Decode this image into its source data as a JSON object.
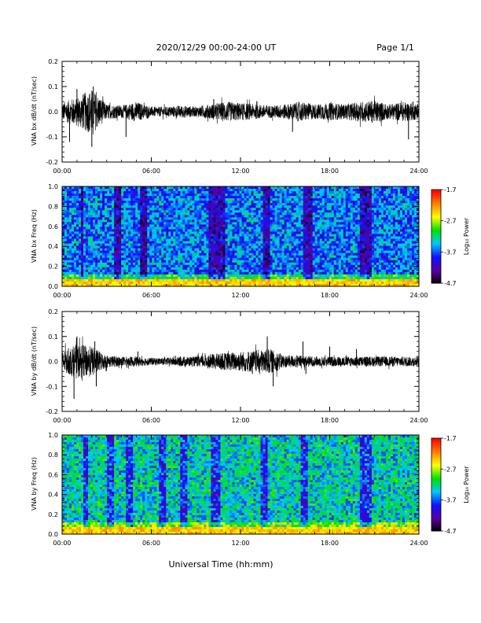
{
  "header": {
    "date_range": "2020/12/29  00:00-24:00 UT",
    "page": "Page 1/1"
  },
  "x_axis": {
    "label": "Universal Time (hh:mm)",
    "ticks": [
      "00:00",
      "06:00",
      "12:00",
      "18:00",
      "24:00"
    ],
    "range_hours": [
      0,
      24
    ]
  },
  "colorbar": {
    "label": "Log₁₀ Power",
    "ticks": [
      "-1.7",
      "-2.7",
      "-3.7",
      "-4.7"
    ],
    "range": [
      -4.7,
      -1.7
    ],
    "colors": [
      "#000000",
      "#5a00a0",
      "#1010ff",
      "#00c8ff",
      "#00e000",
      "#ffff00",
      "#ff8000",
      "#ff0000"
    ]
  },
  "chart_data": [
    {
      "type": "line",
      "ylabel": "VNA bx dB/dt (nT/sec)",
      "ylim": [
        -0.2,
        0.2
      ],
      "yticks": [
        "0.2",
        "0.1",
        "0.0",
        "-0.1",
        "-0.2"
      ],
      "color": "#000000",
      "series": [
        {
          "x_hours": [
            0,
            1,
            2,
            3,
            4,
            5,
            6,
            7,
            8,
            9,
            10,
            11,
            12,
            13,
            14,
            15,
            16,
            17,
            18,
            19,
            20,
            21,
            22,
            23,
            24
          ],
          "amplitude": [
            0.035,
            0.06,
            0.09,
            0.03,
            0.025,
            0.04,
            0.02,
            0.02,
            0.025,
            0.02,
            0.03,
            0.04,
            0.035,
            0.03,
            0.025,
            0.03,
            0.04,
            0.03,
            0.035,
            0.03,
            0.04,
            0.045,
            0.03,
            0.04,
            0.03
          ],
          "spikes": [
            [
              0.5,
              -0.12
            ],
            [
              1.0,
              0.09
            ],
            [
              2.0,
              -0.14
            ],
            [
              2.1,
              0.1
            ],
            [
              4.3,
              -0.1
            ],
            [
              10.2,
              0.05
            ],
            [
              15.5,
              -0.08
            ],
            [
              23.3,
              -0.11
            ],
            [
              23.6,
              0.04
            ]
          ]
        }
      ]
    },
    {
      "type": "heatmap",
      "ylabel": "VNA bx Freq (Hz)",
      "ylim": [
        0.0,
        1.0
      ],
      "yticks": [
        "1.0",
        "0.8",
        "0.6",
        "0.4",
        "0.2",
        "0.0"
      ],
      "xlim_hours": [
        0,
        24
      ],
      "low_freq_power": -2.4,
      "background_power": -3.6,
      "dark_bands_hours": [
        [
          1.2,
          1.5
        ],
        [
          3.5,
          4.0
        ],
        [
          5.2,
          5.7
        ],
        [
          9.8,
          10.9
        ],
        [
          13.5,
          14.0
        ],
        [
          16.2,
          16.8
        ],
        [
          20.0,
          20.8
        ]
      ]
    },
    {
      "type": "line",
      "ylabel": "VNA by dB/dt (nT/sec)",
      "ylim": [
        -0.2,
        0.2
      ],
      "yticks": [
        "0.2",
        "0.1",
        "0.0",
        "-0.1",
        "-0.2"
      ],
      "color": "#000000",
      "series": [
        {
          "x_hours": [
            0,
            1,
            2,
            3,
            4,
            5,
            6,
            7,
            8,
            9,
            10,
            11,
            12,
            13,
            14,
            15,
            16,
            17,
            18,
            19,
            20,
            21,
            22,
            23,
            24
          ],
          "amplitude": [
            0.04,
            0.07,
            0.06,
            0.025,
            0.02,
            0.02,
            0.015,
            0.015,
            0.02,
            0.02,
            0.03,
            0.035,
            0.04,
            0.045,
            0.05,
            0.025,
            0.025,
            0.02,
            0.02,
            0.02,
            0.02,
            0.02,
            0.02,
            0.02,
            0.02
          ],
          "spikes": [
            [
              0.8,
              -0.15
            ],
            [
              1.0,
              0.1
            ],
            [
              2.2,
              0.08
            ],
            [
              2.3,
              -0.1
            ],
            [
              5.1,
              0.04
            ],
            [
              12.8,
              -0.05
            ],
            [
              13.8,
              0.1
            ],
            [
              14.2,
              -0.1
            ],
            [
              16.2,
              0.08
            ],
            [
              16.4,
              -0.05
            ],
            [
              18.0,
              0.06
            ],
            [
              19.8,
              0.05
            ]
          ]
        }
      ]
    },
    {
      "type": "heatmap",
      "ylabel": "VNA by Freq (Hz)",
      "ylim": [
        0.0,
        1.0
      ],
      "yticks": [
        "1.0",
        "0.8",
        "0.6",
        "0.4",
        "0.2",
        "0.0"
      ],
      "xlim_hours": [
        0,
        24
      ],
      "low_freq_power": -2.4,
      "background_power": -3.3,
      "dark_bands_hours": [
        [
          1.4,
          1.7
        ],
        [
          3.0,
          3.5
        ],
        [
          4.3,
          4.8
        ],
        [
          6.5,
          7.0
        ],
        [
          8.0,
          8.5
        ],
        [
          10.0,
          10.6
        ],
        [
          13.3,
          13.8
        ],
        [
          16.0,
          16.6
        ],
        [
          20.0,
          20.8
        ]
      ]
    }
  ]
}
